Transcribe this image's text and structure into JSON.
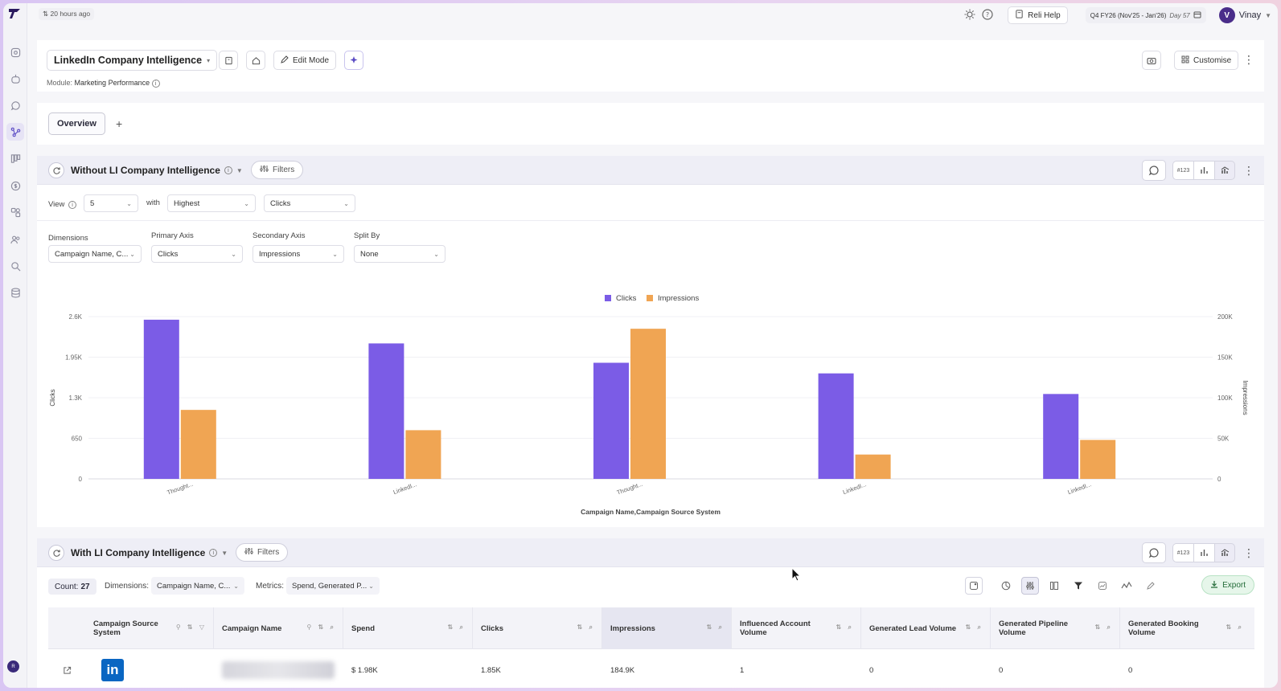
{
  "topbar": {
    "time_ago": "20 hours ago",
    "help_label": "Reli Help",
    "period_label": "Q4 FY26 (Nov'25 - Jan'26)",
    "period_day": "Day 57",
    "user_initial": "V",
    "user_name": "Vinay"
  },
  "header": {
    "dashboard_title": "LinkedIn Company Intelligence",
    "edit_mode_label": "Edit Mode",
    "customise_label": "Customise",
    "module_label": "Module:",
    "module_value": "Marketing Performance"
  },
  "tabs": {
    "items": [
      "Overview"
    ],
    "add": "+"
  },
  "section1": {
    "title": "Without LI Company Intelligence",
    "filters_label": "Filters",
    "numeric_icon_label": "#123",
    "view_label": "View",
    "view_count": "5",
    "with_label": "with",
    "with_value": "Highest",
    "metric_value": "Clicks",
    "dimensions_label": "Dimensions",
    "dimensions_value": "Campaign Name, C...",
    "primary_axis_label": "Primary Axis",
    "primary_axis_value": "Clicks",
    "secondary_axis_label": "Secondary Axis",
    "secondary_axis_value": "Impressions",
    "split_by_label": "Split By",
    "split_by_value": "None"
  },
  "chart_data": {
    "type": "bar",
    "categories": [
      "Thought...",
      "LinkedI...",
      "Thought...",
      "LinkedI...",
      "LinkedI..."
    ],
    "series": [
      {
        "name": "Clicks",
        "axis": "left",
        "color": "#7b5ce6",
        "values": [
          2550,
          2170,
          1860,
          1690,
          1360
        ]
      },
      {
        "name": "Impressions",
        "axis": "right",
        "color": "#f0a553",
        "values": [
          85000,
          60000,
          185000,
          30000,
          48000
        ]
      }
    ],
    "xlabel": "Campaign Name,Campaign Source System",
    "ylabel": "Clicks",
    "y2label": "Impressions",
    "ylim": [
      0,
      2600
    ],
    "y2lim": [
      0,
      200000
    ],
    "yticks": [
      "0",
      "650",
      "1.3K",
      "1.95K",
      "2.6K"
    ],
    "y2ticks": [
      "0",
      "50K",
      "100K",
      "150K",
      "200K"
    ],
    "legend": "top-center"
  },
  "section2": {
    "title": "With LI Company Intelligence",
    "filters_label": "Filters",
    "numeric_icon_label": "#123",
    "count_label": "Count:",
    "count_value": "27",
    "dimensions_label": "Dimensions:",
    "dimensions_value": "Campaign Name, C...",
    "metrics_label": "Metrics:",
    "metrics_value": "Spend, Generated P...",
    "export_label": "Export",
    "columns": [
      "Campaign Source System",
      "Campaign Name",
      "Spend",
      "Clicks",
      "Impressions",
      "Influenced Account Volume",
      "Generated Lead Volume",
      "Generated Pipeline Volume",
      "Generated Booking Volume"
    ],
    "rows": [
      {
        "source_logo_text": "in",
        "spend": "$ 1.98K",
        "clicks": "1.85K",
        "impressions": "184.9K",
        "influenced": "1",
        "leads": "0",
        "pipeline": "0",
        "booking": "0"
      }
    ]
  }
}
